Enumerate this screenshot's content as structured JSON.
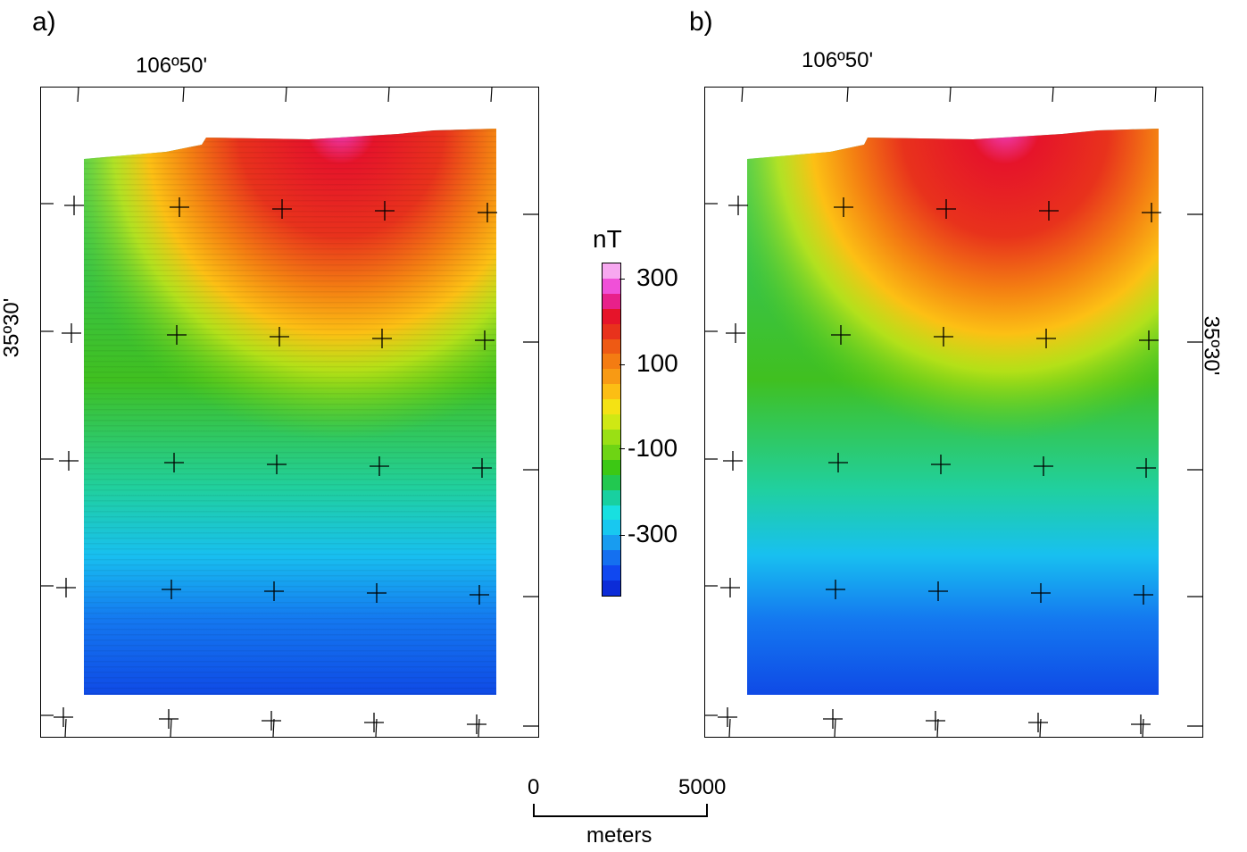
{
  "panels": [
    {
      "letter": "a)",
      "longitude_label": "106º50'",
      "latitude_label": "35º30'",
      "latitude_side": "left"
    },
    {
      "letter": "b)",
      "longitude_label": "106º50'",
      "latitude_label": "35º30'",
      "latitude_side": "right"
    }
  ],
  "colorbar": {
    "unit": "nT",
    "tick_labels": [
      "300",
      "100",
      "-100",
      "-300"
    ],
    "colors": [
      "#f7a8f0",
      "#f050d8",
      "#e8208a",
      "#e6142a",
      "#e8321c",
      "#ee5a14",
      "#f47c12",
      "#f89a14",
      "#fcbe14",
      "#f4e214",
      "#cfe814",
      "#9ae014",
      "#6ed414",
      "#3cc814",
      "#22c850",
      "#18d0a0",
      "#18e0e0",
      "#18c8f0",
      "#189cf0",
      "#1470f0",
      "#1048f0",
      "#0c2cd8"
    ]
  },
  "scale_bar": {
    "start_label": "0",
    "end_label": "5000",
    "unit_label": "meters"
  }
}
